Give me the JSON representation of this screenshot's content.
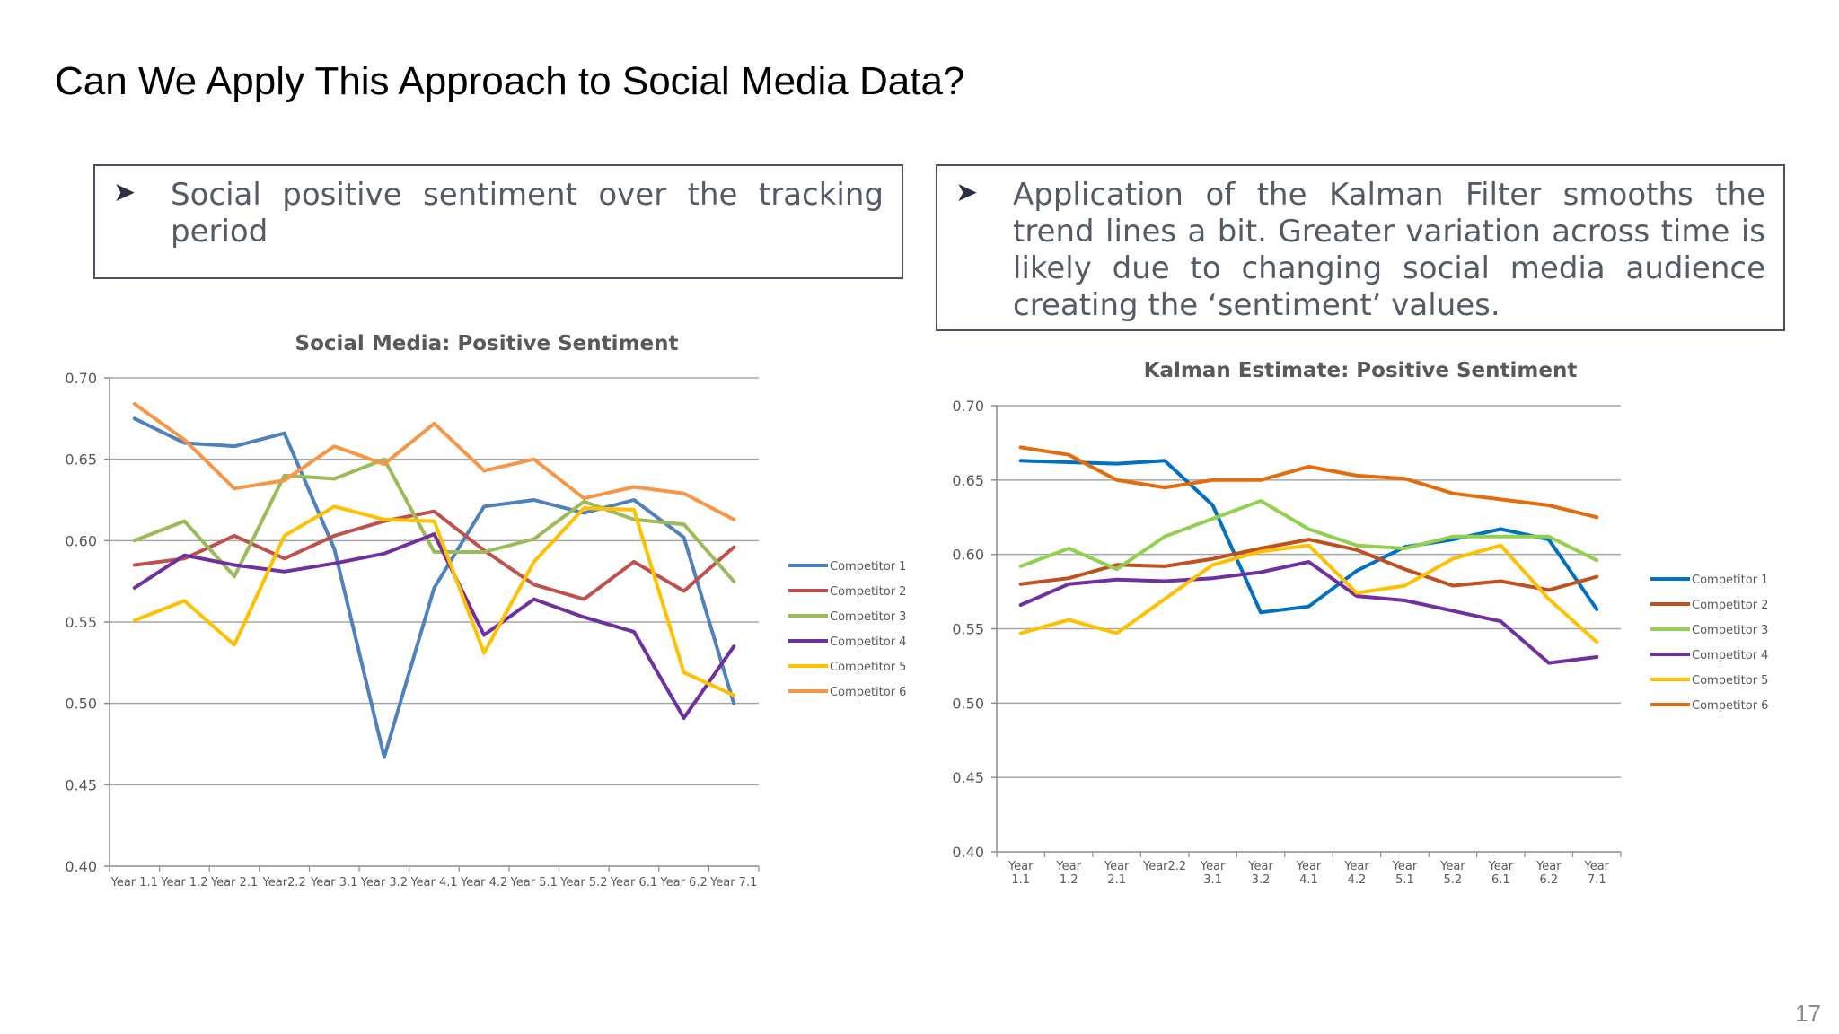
{
  "slide": {
    "title": "Can We Apply This Approach to Social Media Data?",
    "page_number": "17"
  },
  "bullets": {
    "left": {
      "icon": "arrow-bullet-icon",
      "text": "Social positive sentiment over the tracking period"
    },
    "right": {
      "icon": "arrow-bullet-icon",
      "text": "Application of the Kalman Filter smooths the trend lines a bit. Greater variation across time is likely due to changing social media audience creating the ‘sentiment’ values."
    }
  },
  "chart_data": [
    {
      "type": "line",
      "title": "Social Media: Positive Sentiment",
      "xlabel": "",
      "ylabel": "",
      "ylim": [
        0.4,
        0.7
      ],
      "yticks": [
        "0.70",
        "0.65",
        "0.60",
        "0.55",
        "0.50",
        "0.45",
        "0.40"
      ],
      "grid": true,
      "legend": "right",
      "categories": [
        "Year 1.1",
        "Year 1.2",
        "Year 2.1",
        "Year2.2",
        "Year 3.1",
        "Year 3.2",
        "Year 4.1",
        "Year 4.2",
        "Year 5.1",
        "Year 5.2",
        "Year 6.1",
        "Year 6.2",
        "Year 7.1"
      ],
      "series": [
        {
          "name": "Competitor 1",
          "color": "#4f81bd",
          "values": [
            0.675,
            0.66,
            0.658,
            0.666,
            0.595,
            0.467,
            0.571,
            0.621,
            0.625,
            0.617,
            0.625,
            0.602,
            0.5
          ]
        },
        {
          "name": "Competitor 2",
          "color": "#c0504d",
          "values": [
            0.585,
            0.589,
            0.603,
            0.589,
            0.603,
            0.612,
            0.618,
            0.594,
            0.573,
            0.564,
            0.587,
            0.569,
            0.596
          ]
        },
        {
          "name": "Competitor 3",
          "color": "#9bbb59",
          "values": [
            0.6,
            0.612,
            0.578,
            0.64,
            0.638,
            0.65,
            0.593,
            0.593,
            0.601,
            0.624,
            0.613,
            0.61,
            0.575
          ]
        },
        {
          "name": "Competitor 4",
          "color": "#7030a0",
          "values": [
            0.571,
            0.591,
            0.585,
            0.581,
            0.586,
            0.592,
            0.604,
            0.542,
            0.564,
            0.553,
            0.544,
            0.491,
            0.535
          ]
        },
        {
          "name": "Competitor 5",
          "color": "#ffc000",
          "values": [
            0.551,
            0.563,
            0.536,
            0.603,
            0.621,
            0.613,
            0.612,
            0.531,
            0.587,
            0.62,
            0.619,
            0.519,
            0.505
          ]
        },
        {
          "name": "Competitor 6",
          "color": "#f79646",
          "values": [
            0.684,
            0.662,
            0.632,
            0.637,
            0.658,
            0.647,
            0.672,
            0.643,
            0.65,
            0.626,
            0.633,
            0.629,
            0.613
          ]
        }
      ]
    },
    {
      "type": "line",
      "title": "Kalman Estimate: Positive Sentiment",
      "xlabel": "",
      "ylabel": "",
      "ylim": [
        0.4,
        0.7
      ],
      "yticks": [
        "0.70",
        "0.65",
        "0.60",
        "0.55",
        "0.50",
        "0.45",
        "0.40"
      ],
      "grid": true,
      "legend": "right",
      "categories": [
        [
          "Year",
          "1.1"
        ],
        [
          "Year",
          "1.2"
        ],
        [
          "Year",
          "2.1"
        ],
        [
          "Year2.2",
          ""
        ],
        [
          "Year",
          "3.1"
        ],
        [
          "Year",
          "3.2"
        ],
        [
          "Year",
          "4.1"
        ],
        [
          "Year",
          "4.2"
        ],
        [
          "Year",
          "5.1"
        ],
        [
          "Year",
          "5.2"
        ],
        [
          "Year",
          "6.1"
        ],
        [
          "Year",
          "6.2"
        ],
        [
          "Year",
          "7.1"
        ]
      ],
      "series": [
        {
          "name": "Competitor 1",
          "color": "#0070c0",
          "values": [
            0.663,
            0.662,
            0.661,
            0.663,
            0.633,
            0.561,
            0.565,
            0.589,
            0.605,
            0.61,
            0.617,
            0.61,
            0.563
          ]
        },
        {
          "name": "Competitor 2",
          "color": "#c0501d",
          "values": [
            0.58,
            0.584,
            0.593,
            0.592,
            0.597,
            0.604,
            0.61,
            0.603,
            0.59,
            0.579,
            0.582,
            0.576,
            0.585
          ]
        },
        {
          "name": "Competitor 3",
          "color": "#92d050",
          "values": [
            0.592,
            0.604,
            0.59,
            0.612,
            0.624,
            0.636,
            0.617,
            0.606,
            0.604,
            0.612,
            0.612,
            0.612,
            0.596
          ]
        },
        {
          "name": "Competitor 4",
          "color": "#7030a0",
          "values": [
            0.566,
            0.58,
            0.583,
            0.582,
            0.584,
            0.588,
            0.595,
            0.572,
            0.569,
            0.562,
            0.555,
            0.527,
            0.531
          ]
        },
        {
          "name": "Competitor 5",
          "color": "#ffc000",
          "values": [
            0.547,
            0.556,
            0.547,
            0.57,
            0.593,
            0.602,
            0.606,
            0.574,
            0.579,
            0.597,
            0.606,
            0.57,
            0.541
          ]
        },
        {
          "name": "Competitor 6",
          "color": "#e46c0a",
          "values": [
            0.672,
            0.667,
            0.65,
            0.645,
            0.65,
            0.65,
            0.659,
            0.653,
            0.651,
            0.641,
            0.637,
            0.633,
            0.625
          ]
        }
      ]
    }
  ]
}
